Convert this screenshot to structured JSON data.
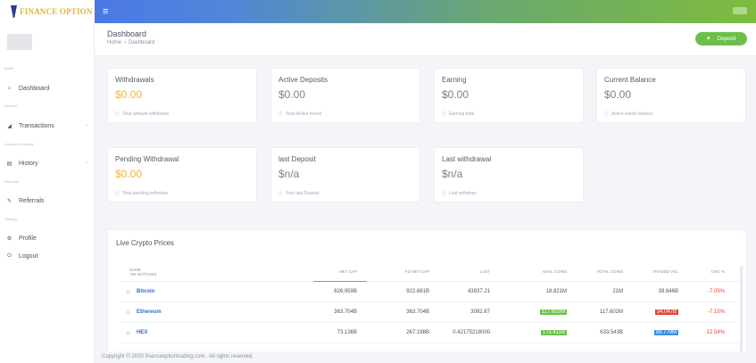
{
  "header": {
    "logo_text": "FINANCE OPTION",
    "menu_glyph": "≡"
  },
  "sidebar": {
    "sections": {
      "main": "MAIN",
      "finance": "Finance",
      "account_summary": "Account Summary",
      "referrals": "Referrals",
      "settings": "Settings"
    },
    "items": [
      {
        "label": "Dashboard",
        "icon": "home-icon",
        "glyph": "⌂"
      },
      {
        "label": "Transactions",
        "icon": "chart-icon",
        "glyph": "◢"
      },
      {
        "label": "History",
        "icon": "list-icon",
        "glyph": "▤"
      },
      {
        "label": "Referrals",
        "icon": "link-icon",
        "glyph": "✎"
      },
      {
        "label": "Profile",
        "icon": "gears-icon",
        "glyph": "⚙"
      },
      {
        "label": "Logout",
        "icon": "power-icon",
        "glyph": "⏻"
      }
    ],
    "arrow": "›"
  },
  "page": {
    "title": "Dashboard",
    "breadcrumb": [
      "Home",
      "Dashboard"
    ],
    "breadcrumb_sep": "›",
    "deposit_button": "Deposit",
    "deposit_plus": "+"
  },
  "cards": [
    {
      "title": "Withdrawals",
      "value": "$0.00",
      "foot": "Total amount withdrawn"
    },
    {
      "title": "Active Deposits",
      "value": "$0.00",
      "foot": "Total Active Invest"
    },
    {
      "title": "Earning",
      "value": "$0.00",
      "foot": "Earning total"
    },
    {
      "title": "Current Balance",
      "value": "$0.00",
      "foot": "Active wallet balance"
    },
    {
      "title": "Pending Withdrawal",
      "value": "$0.00",
      "foot": "Total pending withdraw"
    },
    {
      "title": "last Deposit",
      "value": "$n/a",
      "foot": "Your last Deposit"
    },
    {
      "title": "Last withdrawal",
      "value": "$n/a",
      "foot": "Last withdraw"
    }
  ],
  "info_glyph": "ⓘ",
  "crypto": {
    "title": "Live Crypto Prices",
    "columns": {
      "name": "NAME",
      "name_sub": "793 MATCHES",
      "mkt_cap": "MKT CAP",
      "fd_mkt_cap": "FD MKT CAP",
      "last": "LAST",
      "avail_coins": "AVAIL COINS",
      "total_coins": "TOTAL COINS",
      "traded_vol": "TRADED VOL",
      "chg": "CHG %"
    },
    "rows": [
      {
        "name": "Bitcoin",
        "mkt_cap": "826.959B",
        "fd_mkt_cap": "922.681B",
        "last": "43937.21",
        "avail": "18.821M",
        "total": "21M",
        "vol": "39.846B",
        "chg": "-7.05%"
      },
      {
        "name": "Ethereum",
        "mkt_cap": "363.704B",
        "fd_mkt_cap": "363.704B",
        "last": "3092.67",
        "avail": "117.602M",
        "total": "117.602M",
        "vol": "34.047B",
        "chg": "-7.15%"
      },
      {
        "name": "HEX",
        "mkt_cap": "73.136B",
        "fd_mkt_cap": "267.198B",
        "last": "0.42175218000",
        "avail": "173.411B",
        "total": "633.543B",
        "vol": "99.779M",
        "chg": "-12.54%"
      }
    ]
  },
  "footer": {
    "text": "Copyright © 2020 financeoptiontrading.com . All rights reserved."
  },
  "colors": {
    "accent_green": "#6cc04a",
    "value_yellow": "#f0b83c",
    "negative_red": "#e0453c",
    "link_blue": "#2f6fd0"
  }
}
